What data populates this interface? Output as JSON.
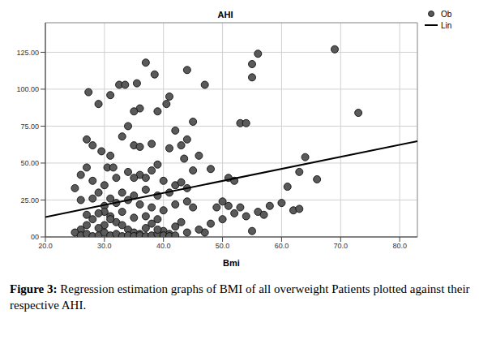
{
  "chart_data": {
    "type": "scatter",
    "title": "AHI",
    "x_label": "Bmi",
    "caption": {
      "label": "Figure 3:",
      "text": "Regression estimation graphs of BMI of all overweight Patients plotted against their respective AHI."
    },
    "xlim": [
      20,
      83
    ],
    "ylim": [
      0,
      145
    ],
    "xticks": [
      {
        "value": 20,
        "label": "20.0"
      },
      {
        "value": 30,
        "label": "30.0"
      },
      {
        "value": 40,
        "label": "40.0"
      },
      {
        "value": 50,
        "label": "50.0"
      },
      {
        "value": 60,
        "label": "60.0"
      },
      {
        "value": 70,
        "label": "70.0"
      },
      {
        "value": 80,
        "label": "80.0"
      }
    ],
    "yticks": [
      {
        "value": 0,
        "label": "00"
      },
      {
        "value": 25,
        "label": "25.00"
      },
      {
        "value": 50,
        "label": "50.00"
      },
      {
        "value": 75,
        "label": "75.00"
      },
      {
        "value": 100,
        "label": "100.00"
      },
      {
        "value": 125,
        "label": "125.00"
      }
    ],
    "grid": true,
    "legend": "top-right",
    "series": [
      {
        "name": "Ob",
        "type": "scatter",
        "color": "#5a5a5a",
        "marker": "circle",
        "x": [
          27.3,
          29,
          31,
          32.5,
          33.5,
          35.5,
          37,
          38.5,
          44,
          47,
          41,
          40.5,
          36,
          35,
          39,
          34,
          33,
          27,
          28,
          29.5,
          31,
          30.5,
          31.5,
          35,
          36,
          38,
          41,
          43,
          44,
          42,
          45,
          46,
          43.5,
          39,
          38,
          36,
          35,
          37,
          40,
          42,
          44,
          48,
          51,
          52,
          53,
          54,
          55,
          55,
          56,
          69,
          73,
          64,
          66,
          63,
          61,
          62,
          63,
          58,
          56,
          54,
          52,
          50,
          48,
          47,
          45,
          44,
          42,
          40,
          38,
          36,
          34,
          32,
          30,
          28,
          27,
          26,
          25,
          25,
          26,
          27,
          28,
          29,
          30,
          31,
          32,
          33,
          34,
          35,
          36,
          37,
          38,
          39,
          40,
          41,
          42,
          43,
          44,
          46,
          49,
          50,
          51,
          53,
          55,
          57,
          60,
          26,
          27,
          28,
          29,
          30,
          31,
          32,
          33,
          34,
          35,
          36,
          37,
          38,
          39,
          40,
          41,
          42,
          30,
          31,
          29,
          33,
          35,
          37,
          39,
          41,
          43,
          45,
          30,
          32,
          34,
          26,
          28,
          31,
          29,
          27,
          33,
          35,
          37,
          39
        ],
        "values": [
          98,
          90,
          96,
          103,
          103,
          104,
          118,
          110,
          113,
          103,
          95,
          90,
          87,
          85,
          85,
          75,
          68,
          66,
          62,
          58,
          55,
          47,
          47,
          62,
          61,
          63,
          60,
          62,
          66,
          72,
          78,
          55,
          53,
          49,
          45,
          42,
          40,
          40,
          38,
          35,
          33,
          46,
          40,
          38,
          77,
          77,
          108,
          117,
          124,
          127,
          84,
          54,
          39,
          44,
          34,
          18,
          19,
          21,
          17,
          14,
          16,
          12,
          9,
          3,
          20,
          24,
          22,
          18,
          20,
          22,
          25,
          23,
          21,
          12,
          8,
          5,
          3,
          33,
          42,
          47,
          38,
          30,
          17,
          14,
          10,
          8,
          5,
          3,
          2,
          6,
          9,
          12,
          4,
          2,
          7,
          10,
          3,
          5,
          20,
          24,
          21,
          20,
          4,
          15,
          23,
          1,
          2,
          0.5,
          1,
          3,
          1,
          2,
          0.5,
          1,
          0.5,
          1,
          0.5,
          1,
          2,
          1,
          0.5,
          1,
          8,
          12,
          16,
          30,
          28,
          32,
          28,
          30,
          37,
          45,
          35,
          40,
          44,
          25,
          26,
          26,
          6,
          15,
          17,
          13,
          14,
          5
        ]
      },
      {
        "name": "Lin",
        "type": "line",
        "color": "#000000",
        "line_style": "solid",
        "x": [
          20,
          83
        ],
        "values": [
          13.5,
          64.8
        ]
      }
    ]
  }
}
